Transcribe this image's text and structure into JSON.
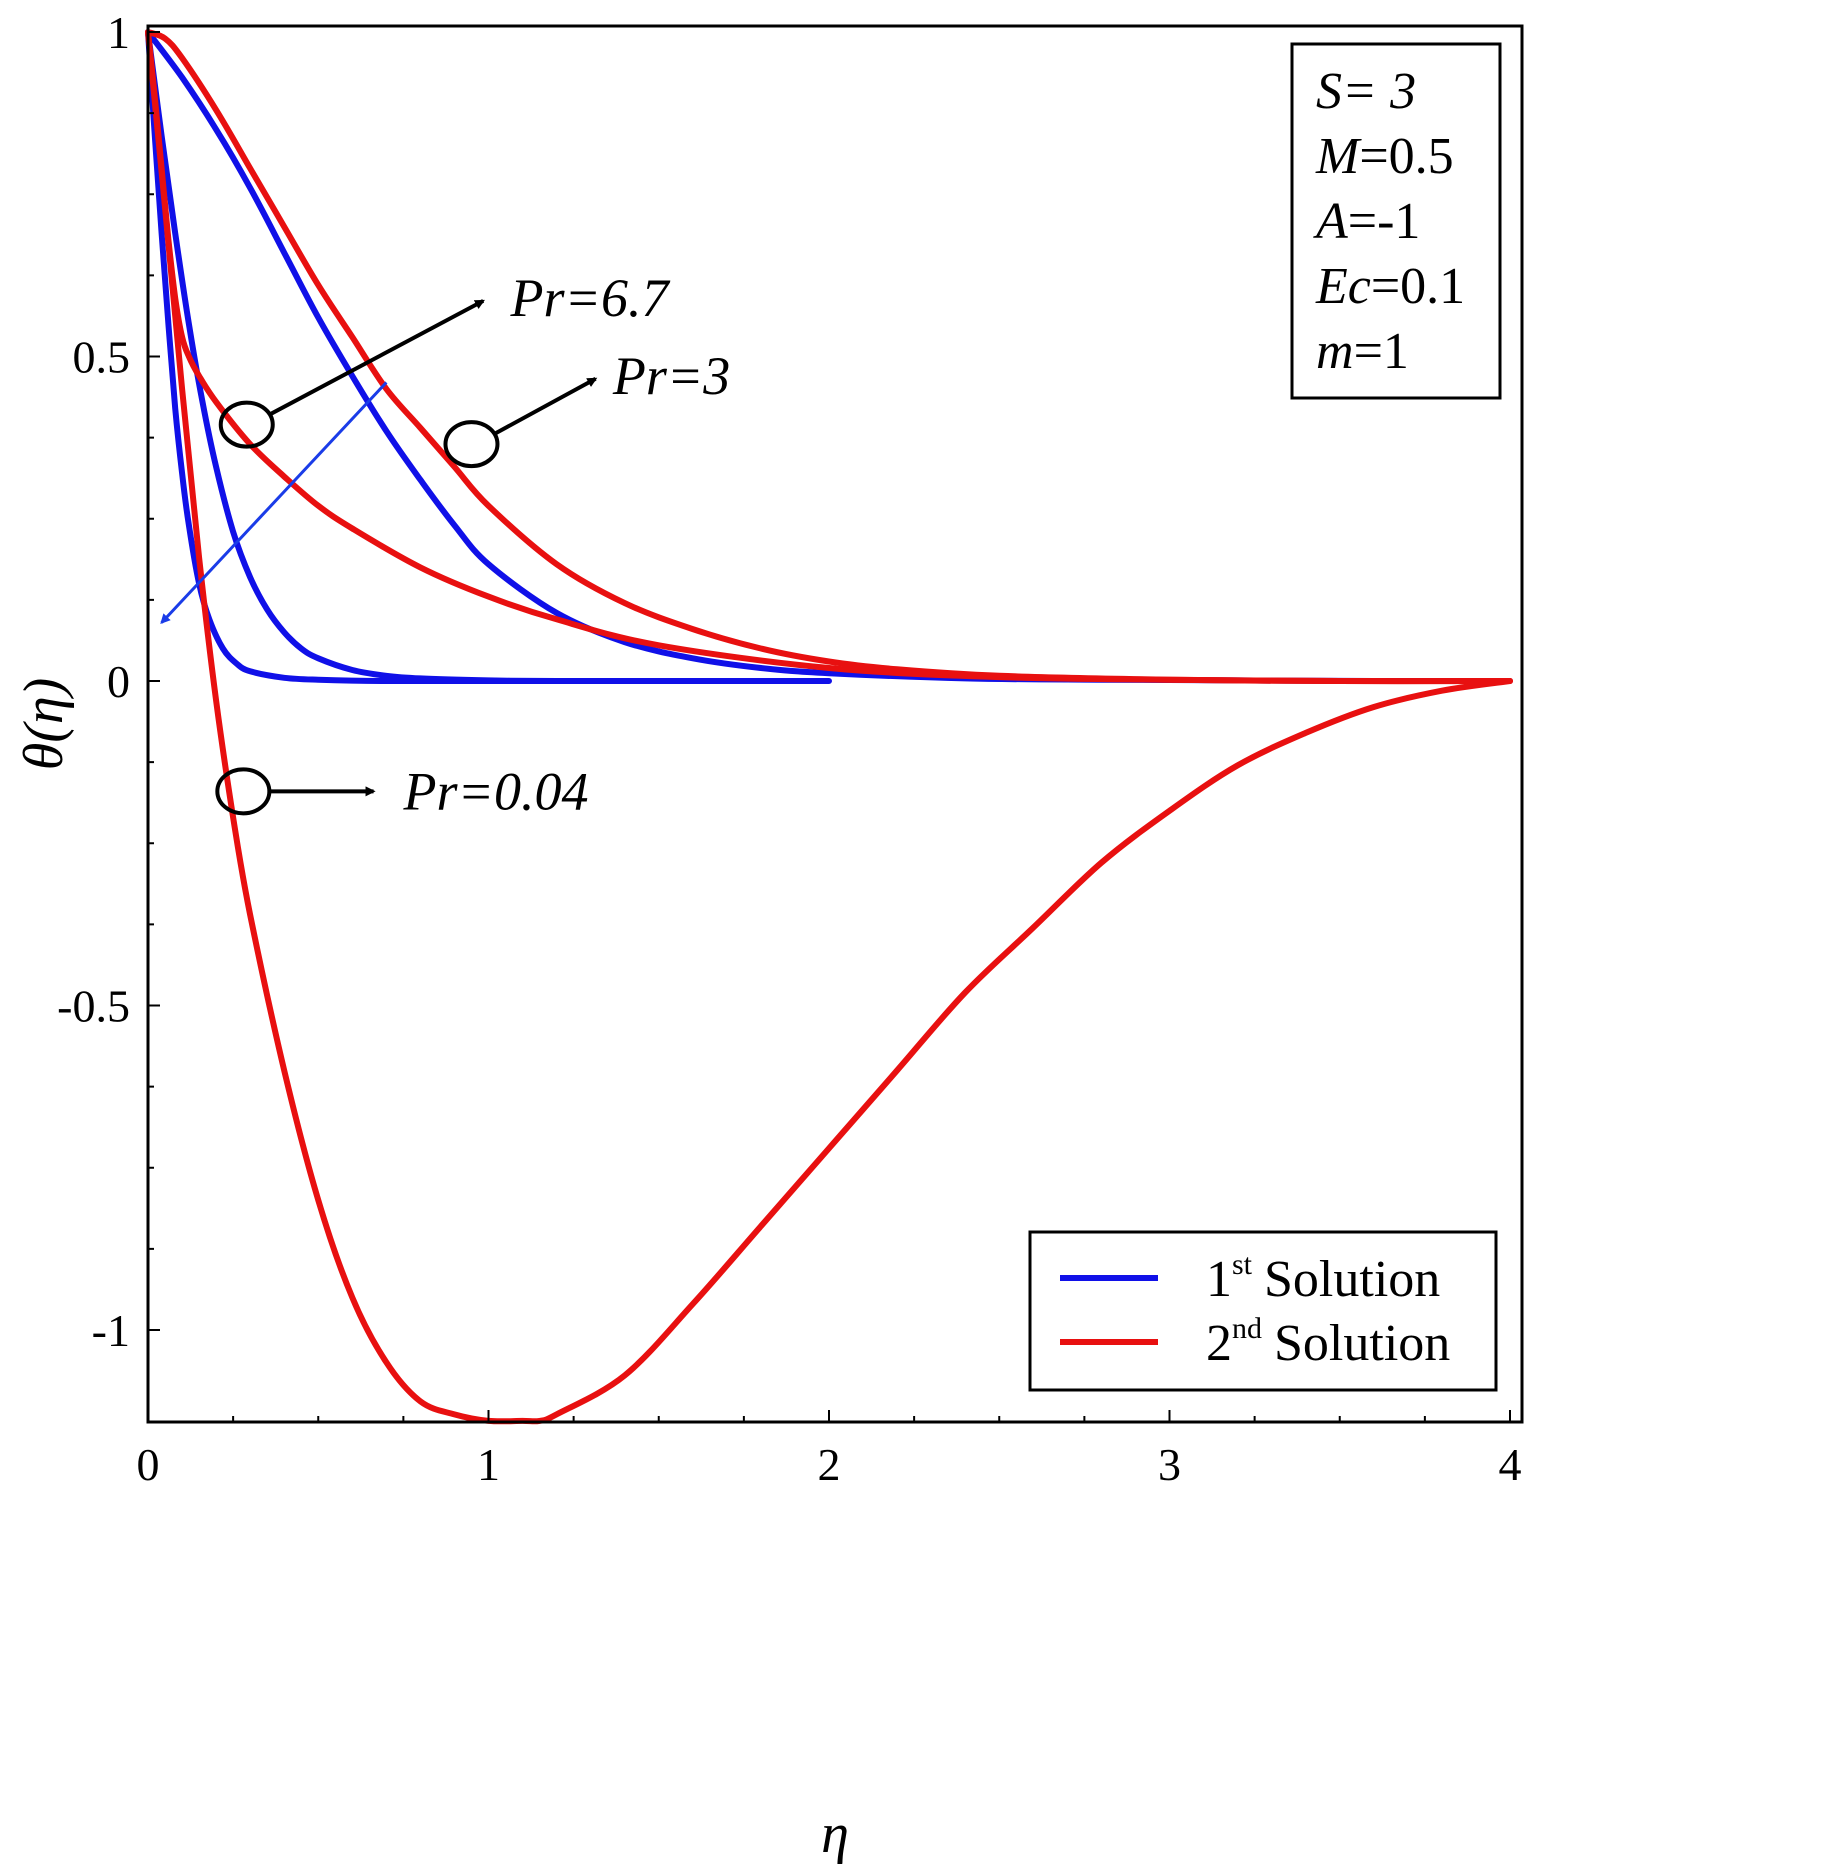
{
  "chart_data": {
    "type": "line",
    "xlabel": "η",
    "ylabel": "θ(η)",
    "xlim": [
      0,
      4
    ],
    "ylim": [
      -1.14,
      1
    ],
    "x_ticks": [
      "0",
      "1",
      "2",
      "3",
      "4"
    ],
    "x_tick_values": [
      0,
      1,
      2,
      3,
      4
    ],
    "y_ticks": [
      "1",
      "0.5",
      "0",
      "-0.5",
      "-1"
    ],
    "y_tick_values": [
      1,
      0.5,
      0,
      -0.5,
      -1
    ],
    "grid": false,
    "colors": {
      "first_solution": "#1010e8",
      "second_solution": "#e81010",
      "axis": "#000000",
      "annotation_arrow": "#000000",
      "trend_arrow": "#1a3ce8"
    },
    "series": [
      {
        "name": "1st Solution, Pr=6.7",
        "solution": "1st",
        "Pr": 6.7,
        "x": [
          0,
          0.02,
          0.04,
          0.06,
          0.08,
          0.1,
          0.12,
          0.15,
          0.18,
          0.22,
          0.26,
          0.3,
          0.4,
          0.5,
          0.7,
          1.0,
          1.5
        ],
        "y": [
          1,
          0.84,
          0.69,
          0.55,
          0.42,
          0.32,
          0.24,
          0.15,
          0.095,
          0.05,
          0.027,
          0.015,
          0.005,
          0.002,
          0.0,
          0.0,
          0.0
        ]
      },
      {
        "name": "1st Solution, Pr=3",
        "solution": "1st",
        "Pr": 3,
        "x": [
          0,
          0.04,
          0.08,
          0.12,
          0.16,
          0.2,
          0.25,
          0.3,
          0.35,
          0.4,
          0.45,
          0.5,
          0.6,
          0.7,
          0.8,
          1.0,
          1.2,
          1.5,
          2.0
        ],
        "y": [
          1,
          0.84,
          0.69,
          0.55,
          0.43,
          0.33,
          0.23,
          0.16,
          0.11,
          0.075,
          0.05,
          0.035,
          0.017,
          0.008,
          0.004,
          0.001,
          0.0,
          0.0,
          0.0
        ]
      },
      {
        "name": "1st Solution, Pr=0.04",
        "solution": "1st",
        "Pr": 0.04,
        "x": [
          0,
          0.1,
          0.2,
          0.3,
          0.4,
          0.5,
          0.6,
          0.7,
          0.8,
          0.9,
          1.0,
          1.2,
          1.4,
          1.6,
          1.8,
          2.0,
          2.4,
          2.8,
          3.2,
          3.6,
          4.0
        ],
        "y": [
          1,
          0.93,
          0.85,
          0.76,
          0.66,
          0.56,
          0.47,
          0.385,
          0.31,
          0.24,
          0.18,
          0.105,
          0.06,
          0.035,
          0.02,
          0.012,
          0.004,
          0.002,
          0.001,
          0.0,
          0.0
        ]
      },
      {
        "name": "2nd Solution, Pr=6.7",
        "solution": "2nd",
        "Pr": 6.7,
        "x": [
          0,
          0.02,
          0.04,
          0.06,
          0.08,
          0.1,
          0.12,
          0.15,
          0.2,
          0.3,
          0.4,
          0.5,
          0.6,
          0.8,
          1.0,
          1.2,
          1.5,
          2.0,
          2.5,
          3.0,
          3.5,
          4.0
        ],
        "y": [
          1,
          0.9,
          0.79,
          0.68,
          0.59,
          0.53,
          0.5,
          0.47,
          0.43,
          0.365,
          0.315,
          0.27,
          0.235,
          0.175,
          0.13,
          0.095,
          0.055,
          0.02,
          0.006,
          0.002,
          0.0,
          0.0
        ]
      },
      {
        "name": "2nd Solution, Pr=3",
        "solution": "2nd",
        "Pr": 3,
        "x": [
          0,
          0.05,
          0.1,
          0.2,
          0.3,
          0.4,
          0.5,
          0.6,
          0.7,
          0.8,
          0.9,
          1.0,
          1.2,
          1.4,
          1.6,
          1.8,
          2.0,
          2.2,
          2.5,
          3.0,
          3.5,
          4.0
        ],
        "y": [
          1,
          0.99,
          0.96,
          0.88,
          0.79,
          0.7,
          0.61,
          0.53,
          0.45,
          0.39,
          0.33,
          0.27,
          0.18,
          0.12,
          0.08,
          0.05,
          0.03,
          0.018,
          0.008,
          0.002,
          0.0,
          0.0
        ]
      },
      {
        "name": "2nd Solution, Pr=0.04",
        "solution": "2nd",
        "Pr": 0.04,
        "x": [
          0,
          0.05,
          0.1,
          0.15,
          0.2,
          0.25,
          0.3,
          0.4,
          0.5,
          0.6,
          0.7,
          0.8,
          0.9,
          1.0,
          1.1,
          1.15,
          1.2,
          1.4,
          1.6,
          1.8,
          2.0,
          2.2,
          2.4,
          2.6,
          2.8,
          3.0,
          3.2,
          3.4,
          3.6,
          3.8,
          4.0
        ],
        "y": [
          1,
          0.73,
          0.45,
          0.19,
          -0.03,
          -0.21,
          -0.36,
          -0.6,
          -0.8,
          -0.95,
          -1.05,
          -1.11,
          -1.13,
          -1.14,
          -1.14,
          -1.14,
          -1.13,
          -1.07,
          -0.96,
          -0.84,
          -0.72,
          -0.6,
          -0.48,
          -0.38,
          -0.28,
          -0.2,
          -0.13,
          -0.08,
          -0.04,
          -0.015,
          0.0
        ]
      }
    ],
    "parameters": [
      {
        "symbol": "S",
        "value": "= 3",
        "value_italic": true
      },
      {
        "symbol": "M",
        "value": "=0.5",
        "value_italic": false
      },
      {
        "symbol": "A",
        "value": "=-1",
        "value_italic": false
      },
      {
        "symbol": "Ec",
        "value": "=0.1",
        "value_italic": false
      },
      {
        "symbol": "m",
        "value": "=1",
        "value_italic": false
      }
    ],
    "annotations": {
      "pr_6_7": {
        "label": "Pr=6.7",
        "circle_at": [
          0.29,
          0.395
        ],
        "text_at": [
          1.0,
          0.59
        ]
      },
      "pr_3": {
        "label": "Pr=3",
        "circle_at": [
          0.95,
          0.365
        ],
        "text_at": [
          1.33,
          0.47
        ]
      },
      "pr_0_04": {
        "label": "Pr=0.04",
        "circle_at": [
          0.28,
          -0.17
        ],
        "text_at": [
          0.68,
          -0.17
        ]
      },
      "trend_arrow": {
        "from": [
          0.7,
          0.46
        ],
        "to": [
          0.04,
          0.09
        ],
        "meaning": "increasing Pr"
      }
    },
    "legend": {
      "position": "bottom-right",
      "entries": [
        {
          "num": "1",
          "sup": "st",
          "label": "Solution",
          "series": "1st"
        },
        {
          "num": "2",
          "sup": "nd",
          "label": "Solution",
          "series": "2nd"
        }
      ]
    }
  }
}
